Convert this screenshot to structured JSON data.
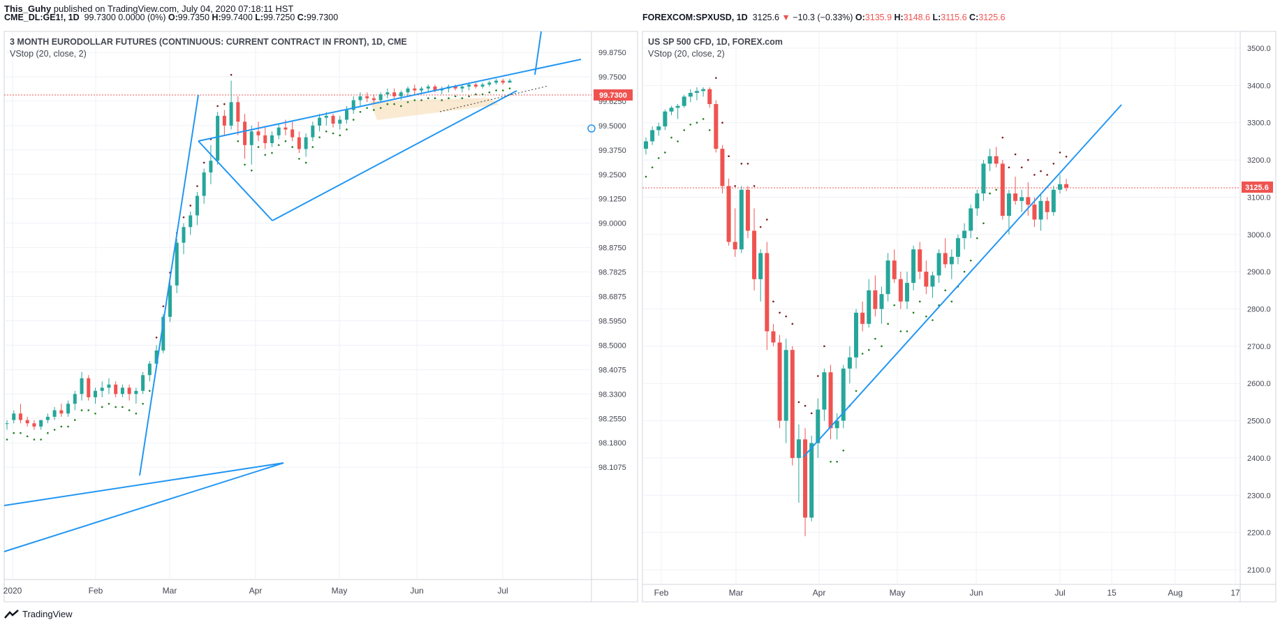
{
  "header": {
    "author": "This_Guhy",
    "published_text": " published on TradingView.com, July 04, 2020 07:18:11 HST"
  },
  "left_panel": {
    "symbol": "CME_DL:GE1!, 1D",
    "values_text": "99.7300 0.0000 (0%)",
    "ohlc": {
      "O": "99.7350",
      "H": "99.7400",
      "L": "99.7250",
      "C": "99.7300"
    },
    "title": "3 MONTH EURODOLLAR FUTURES (CONTINUOUS: CURRENT CONTRACT IN FRONT), 1D, CME",
    "indicator": "VStop (20, close, 2)",
    "last_price_label": "99.7300"
  },
  "right_panel": {
    "symbol": "FOREXCOM:SPXUSD, 1D",
    "price": "3125.6",
    "change_text": "−10.3 (−0.33%)",
    "ohlc": {
      "O": "3135.9",
      "H": "3148.6",
      "L": "3115.6",
      "C": "3125.6"
    },
    "title": "US SP 500 CFD, 1D, FOREX.com",
    "indicator": "VStop (20, close, 2)",
    "last_price_label": "3125.6"
  },
  "footer": {
    "brand": "TradingView"
  },
  "colors": {
    "up": "#26a69a",
    "down": "#ef5350",
    "trend": "#2196f3",
    "stop_up": "#1b7e1b",
    "stop_down": "#7b1b1b",
    "grid": "#eef1f6"
  },
  "chart_data": [
    {
      "type": "candlestick",
      "title": "3 MONTH EURODOLLAR FUTURES (CONTINUOUS: CURRENT CONTRACT IN FRONT), 1D, CME",
      "x_ticks": [
        "2020",
        "Feb",
        "Mar",
        "Apr",
        "May",
        "Jun",
        "Jul"
      ],
      "y_ticks": [
        "99.8750",
        "99.7500",
        "99.6250",
        "99.5000",
        "99.3750",
        "99.2500",
        "99.1250",
        "99.0000",
        "98.8750",
        "98.7825",
        "98.6875",
        "98.5950",
        "98.5000",
        "98.4075",
        "98.3300",
        "98.2550",
        "98.1800",
        "98.1075"
      ],
      "last_price": 99.73,
      "series": [
        {
          "name": "Price",
          "values": [
            [
              98.24,
              98.25,
              98.22,
              98.24
            ],
            [
              98.25,
              98.28,
              98.24,
              98.27
            ],
            [
              98.27,
              98.3,
              98.24,
              98.25
            ],
            [
              98.25,
              98.26,
              98.23,
              98.24
            ],
            [
              98.24,
              98.25,
              98.22,
              98.23
            ],
            [
              98.23,
              98.25,
              98.22,
              98.25
            ],
            [
              98.25,
              98.27,
              98.24,
              98.26
            ],
            [
              98.26,
              98.29,
              98.25,
              98.28
            ],
            [
              98.28,
              98.3,
              98.26,
              98.27
            ],
            [
              98.27,
              98.31,
              98.26,
              98.3
            ],
            [
              98.3,
              98.34,
              98.28,
              98.33
            ],
            [
              98.33,
              98.4,
              98.31,
              98.38
            ],
            [
              98.38,
              98.39,
              98.31,
              98.32
            ],
            [
              98.32,
              98.35,
              98.3,
              98.34
            ],
            [
              98.34,
              98.37,
              98.32,
              98.35
            ],
            [
              98.35,
              98.38,
              98.33,
              98.36
            ],
            [
              98.36,
              98.37,
              98.32,
              98.33
            ],
            [
              98.33,
              98.36,
              98.32,
              98.35
            ],
            [
              98.35,
              98.36,
              98.31,
              98.33
            ],
            [
              98.33,
              98.35,
              98.3,
              98.34
            ],
            [
              98.34,
              98.4,
              98.33,
              98.39
            ],
            [
              98.39,
              98.44,
              98.37,
              98.43
            ],
            [
              98.43,
              98.5,
              98.41,
              98.48
            ],
            [
              98.48,
              98.62,
              98.47,
              98.61
            ],
            [
              98.61,
              98.75,
              98.59,
              98.73
            ],
            [
              98.73,
              98.92,
              98.7,
              98.9
            ],
            [
              98.9,
              99.0,
              98.85,
              98.98
            ],
            [
              98.98,
              99.06,
              98.94,
              99.04
            ],
            [
              99.04,
              99.16,
              98.99,
              99.14
            ],
            [
              99.14,
              99.28,
              99.1,
              99.26
            ],
            [
              99.26,
              99.4,
              99.2,
              99.32
            ],
            [
              99.32,
              99.57,
              99.3,
              99.55
            ],
            [
              99.55,
              99.58,
              99.45,
              99.5
            ],
            [
              99.5,
              99.73,
              99.48,
              99.62
            ],
            [
              99.62,
              99.65,
              99.45,
              99.52
            ],
            [
              99.52,
              99.56,
              99.33,
              99.4
            ],
            [
              99.4,
              99.5,
              99.3,
              99.47
            ],
            [
              99.47,
              99.52,
              99.42,
              99.45
            ],
            [
              99.45,
              99.49,
              99.38,
              99.41
            ],
            [
              99.41,
              99.47,
              99.39,
              99.45
            ],
            [
              99.45,
              99.51,
              99.43,
              99.49
            ],
            [
              99.49,
              99.53,
              99.45,
              99.48
            ],
            [
              99.48,
              99.52,
              99.42,
              99.44
            ],
            [
              99.44,
              99.47,
              99.36,
              99.38
            ],
            [
              99.38,
              99.46,
              99.34,
              99.44
            ],
            [
              99.44,
              99.52,
              99.42,
              99.5
            ],
            [
              99.5,
              99.56,
              99.47,
              99.54
            ],
            [
              99.54,
              99.57,
              99.5,
              99.55
            ],
            [
              99.55,
              99.56,
              99.49,
              99.51
            ],
            [
              99.51,
              99.55,
              99.48,
              99.53
            ],
            [
              99.53,
              99.6,
              99.51,
              99.58
            ],
            [
              99.58,
              99.65,
              99.56,
              99.63
            ],
            [
              99.63,
              99.67,
              99.6,
              99.65
            ],
            [
              99.65,
              99.67,
              99.62,
              99.64
            ],
            [
              99.64,
              99.66,
              99.61,
              99.63
            ],
            [
              99.63,
              99.67,
              99.62,
              99.66
            ],
            [
              99.66,
              99.69,
              99.64,
              99.67
            ],
            [
              99.67,
              99.69,
              99.64,
              99.65
            ],
            [
              99.65,
              99.68,
              99.63,
              99.67
            ],
            [
              99.67,
              99.7,
              99.65,
              99.69
            ],
            [
              99.69,
              99.71,
              99.66,
              99.68
            ],
            [
              99.68,
              99.7,
              99.66,
              99.69
            ],
            [
              99.69,
              99.71,
              99.67,
              99.7
            ],
            [
              99.7,
              99.71,
              99.67,
              99.68
            ],
            [
              99.68,
              99.7,
              99.66,
              99.69
            ],
            [
              99.69,
              99.71,
              99.67,
              99.7
            ],
            [
              99.7,
              99.71,
              99.68,
              99.69
            ],
            [
              99.69,
              99.71,
              99.67,
              99.7
            ],
            [
              99.7,
              99.72,
              99.68,
              99.71
            ],
            [
              99.71,
              99.72,
              99.69,
              99.7
            ],
            [
              99.7,
              99.72,
              99.69,
              99.71
            ],
            [
              99.71,
              99.73,
              99.7,
              99.72
            ],
            [
              99.72,
              99.74,
              99.71,
              99.73
            ],
            [
              99.73,
              99.74,
              99.71,
              99.72
            ],
            [
              99.72,
              99.74,
              99.72,
              99.73
            ]
          ]
        }
      ]
    },
    {
      "type": "candlestick",
      "title": "US SP 500 CFD, 1D, FOREX.com",
      "x_ticks": [
        "Feb",
        "Mar",
        "Apr",
        "May",
        "Jun",
        "Jul",
        "15",
        "Aug",
        "17"
      ],
      "y_ticks": [
        "3500.0",
        "3400.0",
        "3300.0",
        "3200.0",
        "3100.0",
        "3000.0",
        "2900.0",
        "2800.0",
        "2700.0",
        "2600.0",
        "2500.0",
        "2400.0",
        "2300.0",
        "2200.0",
        "2100.0"
      ],
      "last_price": 3125.6,
      "series": [
        {
          "name": "Price",
          "values": [
            [
              3230,
              3260,
              3215,
              3250
            ],
            [
              3250,
              3290,
              3240,
              3280
            ],
            [
              3280,
              3300,
              3265,
              3290
            ],
            [
              3290,
              3335,
              3280,
              3330
            ],
            [
              3330,
              3345,
              3320,
              3340
            ],
            [
              3340,
              3350,
              3310,
              3345
            ],
            [
              3345,
              3375,
              3340,
              3370
            ],
            [
              3370,
              3390,
              3355,
              3380
            ],
            [
              3380,
              3395,
              3360,
              3385
            ],
            [
              3385,
              3395,
              3370,
              3390
            ],
            [
              3390,
              3395,
              3340,
              3350
            ],
            [
              3350,
              3360,
              3220,
              3230
            ],
            [
              3230,
              3240,
              3110,
              3130
            ],
            [
              3130,
              3150,
              2970,
              2980
            ],
            [
              2980,
              3070,
              2940,
              2960
            ],
            [
              2960,
              3130,
              2950,
              3120
            ],
            [
              3120,
              3130,
              2990,
              3010
            ],
            [
              3010,
              3070,
              2850,
              2880
            ],
            [
              2880,
              2960,
              2820,
              2950
            ],
            [
              2950,
              2980,
              2690,
              2740
            ],
            [
              2740,
              2760,
              2700,
              2710
            ],
            [
              2710,
              2730,
              2480,
              2500
            ],
            [
              2500,
              2720,
              2440,
              2690
            ],
            [
              2690,
              2700,
              2380,
              2400
            ],
            [
              2400,
              2490,
              2280,
              2450
            ],
            [
              2450,
              2480,
              2190,
              2240
            ],
            [
              2240,
              2460,
              2230,
              2440
            ],
            [
              2440,
              2560,
              2400,
              2530
            ],
            [
              2530,
              2640,
              2500,
              2630
            ],
            [
              2630,
              2650,
              2450,
              2480
            ],
            [
              2480,
              2520,
              2450,
              2500
            ],
            [
              2500,
              2650,
              2480,
              2640
            ],
            [
              2640,
              2700,
              2600,
              2670
            ],
            [
              2670,
              2800,
              2640,
              2790
            ],
            [
              2790,
              2820,
              2740,
              2760
            ],
            [
              2760,
              2880,
              2750,
              2850
            ],
            [
              2850,
              2890,
              2780,
              2800
            ],
            [
              2800,
              2860,
              2760,
              2840
            ],
            [
              2840,
              2950,
              2820,
              2930
            ],
            [
              2930,
              2960,
              2870,
              2880
            ],
            [
              2880,
              2900,
              2800,
              2820
            ],
            [
              2820,
              2900,
              2800,
              2870
            ],
            [
              2870,
              2970,
              2850,
              2960
            ],
            [
              2960,
              2980,
              2880,
              2900
            ],
            [
              2900,
              2930,
              2840,
              2860
            ],
            [
              2860,
              2900,
              2830,
              2890
            ],
            [
              2890,
              2960,
              2870,
              2950
            ],
            [
              2950,
              2990,
              2910,
              2920
            ],
            [
              2920,
              2960,
              2880,
              2940
            ],
            [
              2940,
              3000,
              2920,
              2990
            ],
            [
              2990,
              3030,
              2960,
              3010
            ],
            [
              3010,
              3080,
              2990,
              3070
            ],
            [
              3070,
              3120,
              3050,
              3110
            ],
            [
              3110,
              3200,
              3090,
              3190
            ],
            [
              3190,
              3230,
              3170,
              3210
            ],
            [
              3210,
              3235,
              3180,
              3190
            ],
            [
              3190,
              3200,
              3040,
              3050
            ],
            [
              3050,
              3120,
              3000,
              3110
            ],
            [
              3110,
              3155,
              3080,
              3090
            ],
            [
              3090,
              3120,
              3060,
              3100
            ],
            [
              3100,
              3140,
              3050,
              3080
            ],
            [
              3080,
              3100,
              3020,
              3040
            ],
            [
              3040,
              3110,
              3010,
              3090
            ],
            [
              3090,
              3100,
              3040,
              3060
            ],
            [
              3060,
              3130,
              3050,
              3120
            ],
            [
              3120,
              3160,
              3110,
              3135
            ],
            [
              3135,
              3149,
              3116,
              3126
            ]
          ]
        }
      ]
    }
  ]
}
